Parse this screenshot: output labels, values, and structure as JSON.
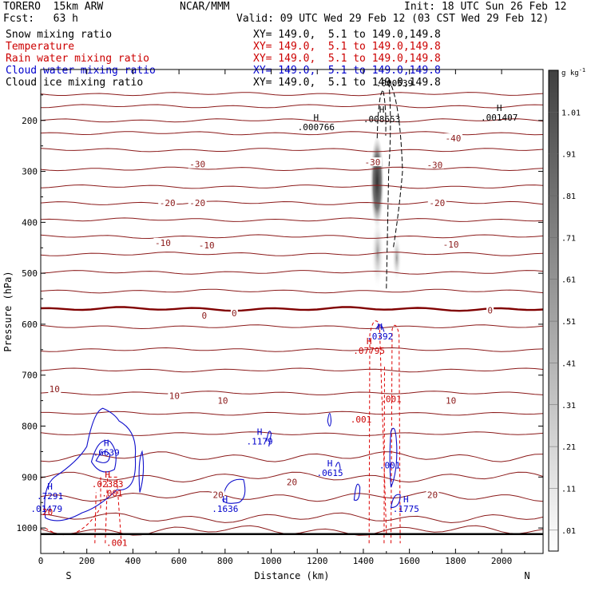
{
  "header": {
    "model": "TORERO  15km ARW",
    "org": "NCAR/MMM",
    "init": "Init: 18 UTC Sun 26 Feb 12",
    "fcst": "Fcst:   63 h",
    "valid": "Valid: 09 UTC Wed 29 Feb 12 (03 CST Wed 29 Feb 12)"
  },
  "fields": [
    {
      "name": "Snow mixing ratio",
      "xy": "XY= 149.0,  5.1 to 149.0,149.8",
      "color": "#000000"
    },
    {
      "name": "Temperature",
      "xy": "XY= 149.0,  5.1 to 149.0,149.8",
      "color": "#cc0000"
    },
    {
      "name": "Rain water mixing ratio",
      "xy": "XY= 149.0,  5.1 to 149.0,149.8",
      "color": "#cc0000"
    },
    {
      "name": "Cloud water mixing ratio",
      "xy": "XY= 149.0,  5.1 to 149.0,149.8",
      "color": "#0000cc"
    },
    {
      "name": "Cloud ice mixing ratio",
      "xy": "XY= 149.0,  5.1 to 149.0,149.8",
      "color": "#000000"
    }
  ],
  "chart_data": {
    "type": "contour cross-section",
    "xlabel": "Distance (km)",
    "ylabel": "Pressure (hPa)",
    "xlim": [
      0,
      2180
    ],
    "ylim": [
      1050,
      100
    ],
    "x_ticks": [
      0,
      200,
      400,
      600,
      800,
      1000,
      1200,
      1400,
      1600,
      1800,
      2000
    ],
    "y_ticks": [
      200,
      300,
      400,
      500,
      600,
      700,
      800,
      900,
      1000
    ],
    "end_labels": {
      "left": "S",
      "right": "N"
    },
    "colorbar": {
      "unit": "g kg",
      "unit_exp": "-1",
      "levels": [
        ".01",
        ".11",
        ".21",
        ".31",
        ".41",
        ".51",
        ".61",
        ".71",
        ".81",
        ".91",
        "1.01"
      ]
    },
    "temperature_labels": [
      {
        "text": "-40",
        "x": 1790,
        "p": 235
      },
      {
        "text": "-30",
        "x": 680,
        "p": 286
      },
      {
        "text": "-30",
        "x": 1440,
        "p": 282
      },
      {
        "text": "-30",
        "x": 1710,
        "p": 287
      },
      {
        "text": "-20",
        "x": 550,
        "p": 362
      },
      {
        "text": "-20",
        "x": 680,
        "p": 362
      },
      {
        "text": "-20",
        "x": 1720,
        "p": 362
      },
      {
        "text": "-10",
        "x": 530,
        "p": 440
      },
      {
        "text": "-10",
        "x": 720,
        "p": 445
      },
      {
        "text": "-10",
        "x": 1780,
        "p": 443
      },
      {
        "text": "0",
        "x": 710,
        "p": 583
      },
      {
        "text": "0",
        "x": 840,
        "p": 578
      },
      {
        "text": "0",
        "x": 1950,
        "p": 573
      },
      {
        "text": "10",
        "x": 60,
        "p": 727
      },
      {
        "text": "10",
        "x": 580,
        "p": 740
      },
      {
        "text": "10",
        "x": 790,
        "p": 750
      },
      {
        "text": "10",
        "x": 1780,
        "p": 750
      },
      {
        "text": "20",
        "x": 770,
        "p": 935
      },
      {
        "text": "20",
        "x": 1090,
        "p": 910
      },
      {
        "text": "20",
        "x": 1700,
        "p": 935
      }
    ],
    "extrema_labels": [
      {
        "mark": "H",
        "value": ".000766",
        "x": 1195,
        "p": 216,
        "color": "#000000"
      },
      {
        "mark": "H",
        "value": ".008653",
        "x": 1480,
        "p": 200,
        "color": "#000000"
      },
      {
        "mark": "H",
        "value": ".001407",
        "x": 1990,
        "p": 197,
        "color": "#000000"
      },
      {
        "mark": "",
        "value": ".000539",
        "x": 1535,
        "p": 130,
        "color": "#000000"
      },
      {
        "mark": "H",
        "value": ".0392",
        "x": 1472,
        "p": 627,
        "color": "#0000cc"
      },
      {
        "mark": "H",
        "value": ".07795",
        "x": 1425,
        "p": 655,
        "color": "#cc0000"
      },
      {
        "mark": "",
        "value": ".001",
        "x": 1520,
        "p": 750,
        "color": "#cc0000"
      },
      {
        "mark": "",
        "value": ".001",
        "x": 1390,
        "p": 790,
        "color": "#cc0000"
      },
      {
        "mark": "H",
        "value": ".1179",
        "x": 950,
        "p": 833,
        "color": "#0000cc"
      },
      {
        "mark": "H",
        "value": ".6639",
        "x": 285,
        "p": 855,
        "color": "#0000cc"
      },
      {
        "mark": "H",
        "value": ".0615",
        "x": 1255,
        "p": 895,
        "color": "#0000cc"
      },
      {
        "mark": "",
        "value": ".001",
        "x": 1515,
        "p": 880,
        "color": "#0000cc"
      },
      {
        "mark": "H",
        "value": ".02383",
        "x": 290,
        "p": 917,
        "color": "#cc0000"
      },
      {
        "mark": "",
        "value": ".001",
        "x": 310,
        "p": 935,
        "color": "#cc0000"
      },
      {
        "mark": "H",
        "value": ".7291",
        "x": 40,
        "p": 940,
        "color": "#0000cc"
      },
      {
        "mark": "",
        "value": ".01479",
        "x": 25,
        "p": 965,
        "color": "#0000cc"
      },
      {
        "mark": "H",
        "value": ".1636",
        "x": 800,
        "p": 965,
        "color": "#0000cc"
      },
      {
        "mark": "H",
        "value": ".1775",
        "x": 1585,
        "p": 965,
        "color": "#0000cc"
      },
      {
        "mark": "",
        "value": ".001",
        "x": 330,
        "p": 1032,
        "color": "#cc0000"
      },
      {
        "mark": "",
        "value": "20",
        "x": 30,
        "p": 972,
        "color": "#cc0000"
      }
    ]
  }
}
